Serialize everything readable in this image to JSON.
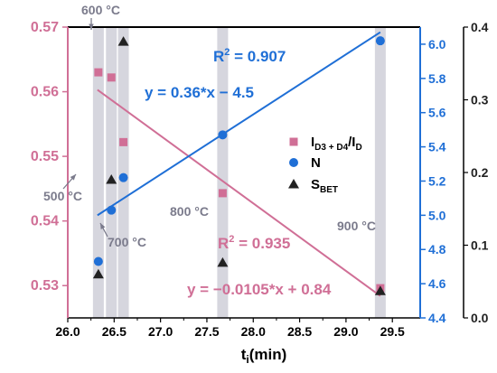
{
  "chart_data": {
    "type": "scatter",
    "xlabel": {
      "main": "t",
      "sub": "i",
      "rest": "(min)"
    },
    "x_range": [
      26.0,
      29.8
    ],
    "x_ticks": [
      "26.0",
      "26.5",
      "27.0",
      "27.5",
      "28.0",
      "28.5",
      "29.0",
      "29.5"
    ],
    "axes": {
      "left": {
        "range": [
          0.525,
          0.57
        ],
        "ticks": [
          "0.53",
          "0.54",
          "0.55",
          "0.56",
          "0.57"
        ],
        "color": "#d06f96"
      },
      "right1": {
        "range": [
          4.4,
          6.1
        ],
        "ticks": [
          "4.4",
          "4.6",
          "4.8",
          "5.0",
          "5.2",
          "5.4",
          "5.6",
          "5.8",
          "6.0"
        ],
        "color": "#1f6fd6"
      },
      "right2": {
        "range": [
          0.0,
          0.4
        ],
        "ticks": [
          "0.0",
          "0.1",
          "0.2",
          "0.3",
          "0.4"
        ],
        "color": "#222222"
      }
    },
    "series": [
      {
        "name": "I_D3+D4/I_D",
        "axis": "left",
        "marker": "square",
        "color": "#d06f96",
        "points": [
          [
            26.33,
            0.563
          ],
          [
            26.47,
            0.5622
          ],
          [
            26.6,
            0.5522
          ],
          [
            27.67,
            0.5443
          ],
          [
            29.37,
            0.5296
          ]
        ]
      },
      {
        "name": "N",
        "axis": "right1",
        "marker": "circle",
        "color": "#1f6fd6",
        "points": [
          [
            26.33,
            4.73
          ],
          [
            26.47,
            5.03
          ],
          [
            26.6,
            5.22
          ],
          [
            27.67,
            5.47
          ],
          [
            29.37,
            6.02
          ]
        ]
      },
      {
        "name": "S_BET",
        "axis": "right2",
        "marker": "triangle",
        "color": "#222222",
        "points": [
          [
            26.33,
            0.06
          ],
          [
            26.47,
            0.19
          ],
          [
            26.6,
            0.38
          ],
          [
            27.67,
            0.076
          ],
          [
            29.37,
            0.037
          ]
        ]
      }
    ],
    "fits": [
      {
        "axis": "left",
        "color": "#d06f96",
        "x": [
          26.32,
          29.37
        ],
        "y": [
          0.5603,
          0.5284
        ]
      },
      {
        "axis": "right1",
        "color": "#1f6fd6",
        "x": [
          26.32,
          29.37
        ],
        "y": [
          5.0,
          6.07
        ]
      }
    ],
    "bands": [
      26.33,
      26.47,
      26.6,
      27.67,
      29.37
    ],
    "annotations": {
      "t500": "500 °C",
      "t600": "600 °C",
      "t700": "700 °C",
      "t800": "800 °C",
      "t900": "900 °C",
      "r2_blue": {
        "main": "R",
        "sup": "2",
        "rest": " = 0.907"
      },
      "eq_blue": "y = 0.36*x − 4.5",
      "r2_pink": {
        "main": "R",
        "sup": "2",
        "rest": " = 0.935"
      },
      "eq_pink": "y = −0.0105*x + 0.84"
    },
    "legend": {
      "placement": "right-middle",
      "items": [
        {
          "marker": "square",
          "color": "#d06f96",
          "main": "I",
          "sub": "D3 + D4",
          "rest": "/I",
          "sub2": "D"
        },
        {
          "marker": "circle",
          "color": "#1f6fd6",
          "main": "N"
        },
        {
          "marker": "triangle",
          "color": "#222222",
          "main": "S",
          "sub": "BET"
        }
      ]
    }
  }
}
